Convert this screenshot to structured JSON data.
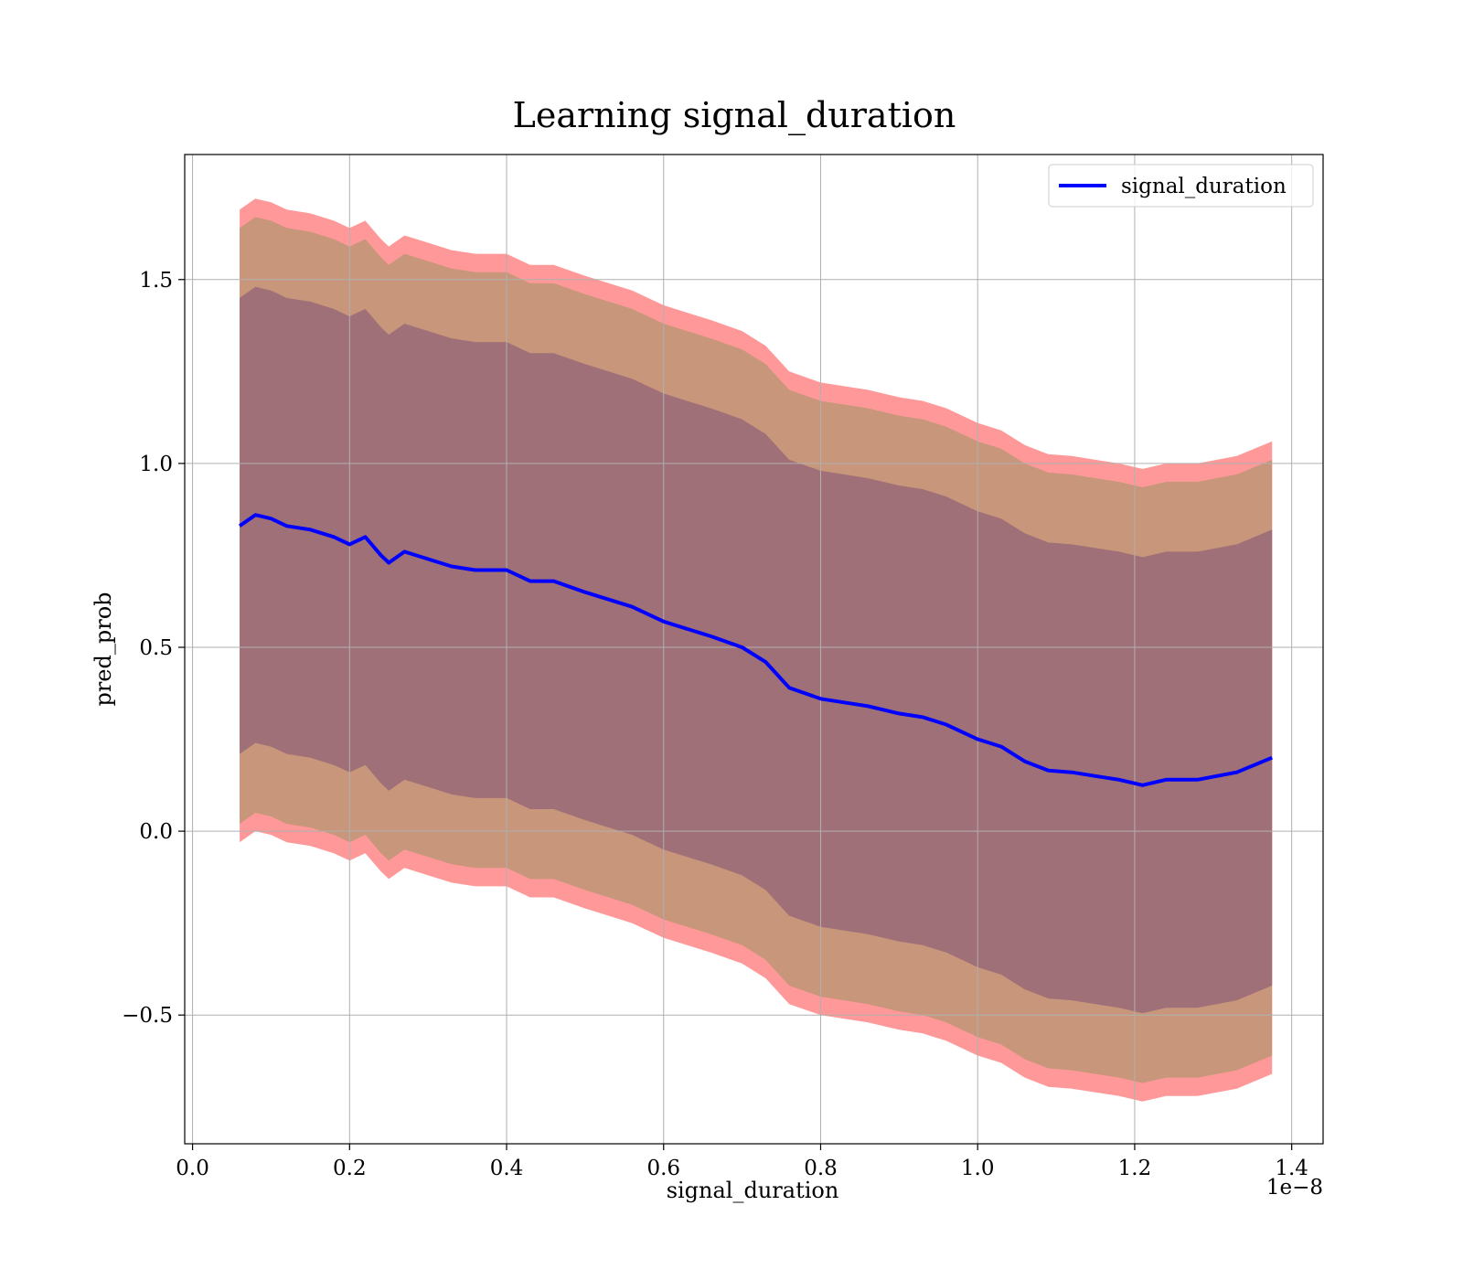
{
  "chart_data": {
    "type": "line",
    "title": "Learning signal_duration",
    "xlabel": "signal_duration",
    "ylabel": "pred_prob",
    "x_offset_label": "1e−8",
    "xlim": [
      -0.01,
      1.44
    ],
    "ylim": [
      -0.85,
      1.84
    ],
    "x_ticks": [
      0.0,
      0.2,
      0.4,
      0.6,
      0.8,
      1.0,
      1.2,
      1.4
    ],
    "x_tick_labels": [
      "0.0",
      "0.2",
      "0.4",
      "0.6",
      "0.8",
      "1.0",
      "1.2",
      "1.4"
    ],
    "y_ticks": [
      -0.5,
      0.0,
      0.5,
      1.0,
      1.5
    ],
    "y_tick_labels": [
      "−0.5",
      "0.0",
      "0.5",
      "1.0",
      "1.5"
    ],
    "grid": true,
    "legend_position": "top-right",
    "colors": {
      "line": "#0000ff",
      "band_outer": "#ff9999",
      "band_middle": "#c8967a",
      "band_inner": "#a07078"
    },
    "series": [
      {
        "name": "signal_duration",
        "x": [
          0.06,
          0.08,
          0.1,
          0.12,
          0.15,
          0.18,
          0.2,
          0.22,
          0.24,
          0.25,
          0.27,
          0.3,
          0.33,
          0.36,
          0.4,
          0.43,
          0.46,
          0.5,
          0.53,
          0.56,
          0.6,
          0.63,
          0.66,
          0.7,
          0.73,
          0.76,
          0.8,
          0.83,
          0.86,
          0.9,
          0.93,
          0.96,
          1.0,
          1.03,
          1.06,
          1.09,
          1.12,
          1.15,
          1.18,
          1.21,
          1.24,
          1.28,
          1.33,
          1.375
        ],
        "y": [
          0.83,
          0.86,
          0.85,
          0.83,
          0.82,
          0.8,
          0.78,
          0.8,
          0.75,
          0.73,
          0.76,
          0.74,
          0.72,
          0.71,
          0.71,
          0.68,
          0.68,
          0.65,
          0.63,
          0.61,
          0.57,
          0.55,
          0.53,
          0.5,
          0.46,
          0.39,
          0.36,
          0.35,
          0.34,
          0.32,
          0.31,
          0.29,
          0.25,
          0.23,
          0.19,
          0.165,
          0.16,
          0.15,
          0.14,
          0.125,
          0.14,
          0.14,
          0.16,
          0.2
        ]
      }
    ],
    "bands": [
      {
        "sigma": 1,
        "half_width_start": 0.62,
        "half_width_end": 0.62
      },
      {
        "sigma": 2,
        "half_width_start": 0.81,
        "half_width_end": 0.81
      },
      {
        "sigma": 3,
        "half_width_start": 0.86,
        "half_width_end": 0.86
      }
    ]
  }
}
